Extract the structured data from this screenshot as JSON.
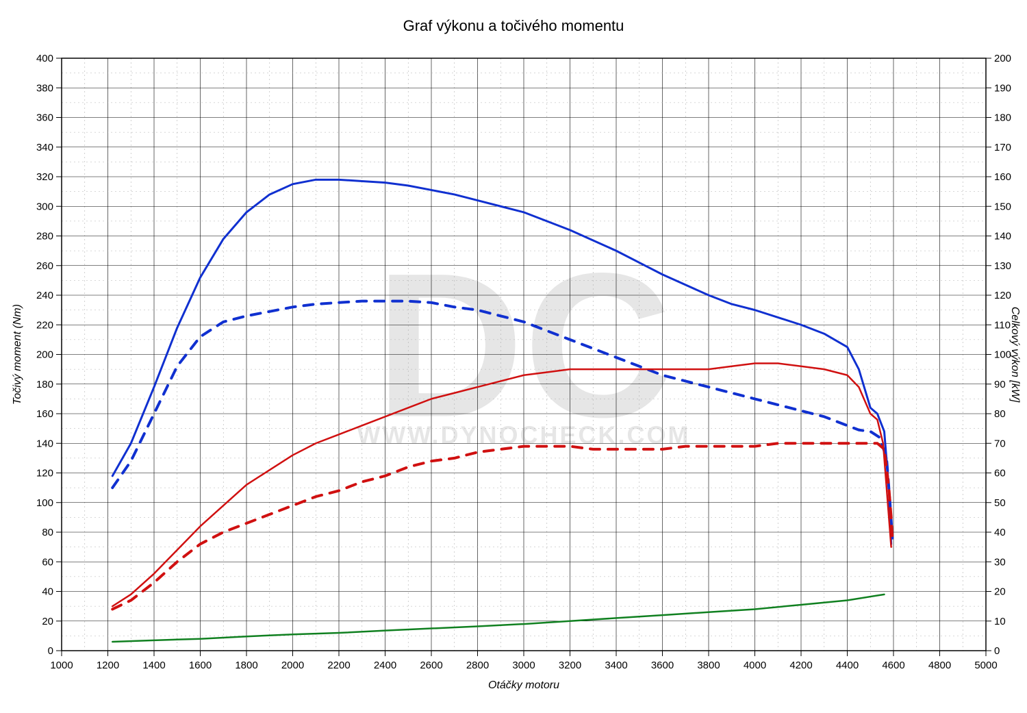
{
  "chart": {
    "title": "Graf výkonu a točivého momentu",
    "title_fontsize": 22,
    "background_color": "#ffffff",
    "grid_color_major": "#000000",
    "grid_color_minor": "#b0b0b0",
    "grid_major_stroke_width": 0.6,
    "grid_minor_dash": "2,4",
    "plot_border_color": "#000000",
    "plot_border_width": 1.5,
    "x_axis": {
      "label": "Otáčky motoru",
      "label_fontsize": 16,
      "label_fontstyle": "italic",
      "min": 1000,
      "max": 5000,
      "tick_step": 200,
      "minor_per_major": 2
    },
    "y_left": {
      "label": "Točivý moment (Nm)",
      "label_fontsize": 16,
      "label_fontstyle": "italic",
      "min": 0,
      "max": 400,
      "tick_step": 20,
      "minor_per_major": 2
    },
    "y_right": {
      "label": "Celkový výkon [kW]",
      "label_fontsize": 16,
      "label_fontstyle": "italic",
      "min": 0,
      "max": 200,
      "tick_step": 10,
      "minor_per_major": 2
    },
    "watermark": {
      "big_letters": "DC",
      "big_font_size": 300,
      "url": "WWW.DYNOCHECK.COM",
      "url_font_size": 36,
      "color": "#e6e6e6"
    },
    "series": [
      {
        "id": "torque_tuned",
        "axis": "left",
        "color": "#1030d0",
        "stroke_width": 3,
        "dash": null,
        "data": [
          [
            1220,
            118
          ],
          [
            1300,
            140
          ],
          [
            1400,
            178
          ],
          [
            1500,
            218
          ],
          [
            1600,
            252
          ],
          [
            1700,
            278
          ],
          [
            1800,
            296
          ],
          [
            1900,
            308
          ],
          [
            2000,
            315
          ],
          [
            2100,
            318
          ],
          [
            2200,
            318
          ],
          [
            2300,
            317
          ],
          [
            2400,
            316
          ],
          [
            2500,
            314
          ],
          [
            2600,
            311
          ],
          [
            2700,
            308
          ],
          [
            2800,
            304
          ],
          [
            2900,
            300
          ],
          [
            3000,
            296
          ],
          [
            3100,
            290
          ],
          [
            3200,
            284
          ],
          [
            3300,
            277
          ],
          [
            3400,
            270
          ],
          [
            3500,
            262
          ],
          [
            3600,
            254
          ],
          [
            3700,
            247
          ],
          [
            3800,
            240
          ],
          [
            3900,
            234
          ],
          [
            4000,
            230
          ],
          [
            4100,
            225
          ],
          [
            4200,
            220
          ],
          [
            4300,
            214
          ],
          [
            4400,
            205
          ],
          [
            4450,
            190
          ],
          [
            4500,
            164
          ],
          [
            4530,
            160
          ],
          [
            4560,
            148
          ],
          [
            4580,
            110
          ],
          [
            4590,
            72
          ]
        ]
      },
      {
        "id": "torque_stock",
        "axis": "left",
        "color": "#1030d0",
        "stroke_width": 4,
        "dash": "14,12",
        "data": [
          [
            1220,
            110
          ],
          [
            1300,
            128
          ],
          [
            1400,
            160
          ],
          [
            1500,
            192
          ],
          [
            1600,
            212
          ],
          [
            1700,
            222
          ],
          [
            1800,
            226
          ],
          [
            1900,
            229
          ],
          [
            2000,
            232
          ],
          [
            2100,
            234
          ],
          [
            2200,
            235
          ],
          [
            2300,
            236
          ],
          [
            2400,
            236
          ],
          [
            2500,
            236
          ],
          [
            2600,
            235
          ],
          [
            2700,
            232
          ],
          [
            2800,
            230
          ],
          [
            2900,
            226
          ],
          [
            3000,
            222
          ],
          [
            3100,
            216
          ],
          [
            3200,
            210
          ],
          [
            3300,
            204
          ],
          [
            3400,
            198
          ],
          [
            3500,
            192
          ],
          [
            3600,
            186
          ],
          [
            3700,
            182
          ],
          [
            3800,
            178
          ],
          [
            3900,
            174
          ],
          [
            4000,
            170
          ],
          [
            4100,
            166
          ],
          [
            4200,
            162
          ],
          [
            4300,
            158
          ],
          [
            4400,
            152
          ],
          [
            4450,
            149
          ],
          [
            4500,
            148
          ],
          [
            4540,
            144
          ],
          [
            4570,
            130
          ],
          [
            4585,
            100
          ],
          [
            4595,
            76
          ]
        ]
      },
      {
        "id": "power_tuned",
        "axis": "right",
        "color": "#d01010",
        "stroke_width": 2.5,
        "dash": null,
        "data": [
          [
            1220,
            15
          ],
          [
            1300,
            19
          ],
          [
            1400,
            26
          ],
          [
            1500,
            34
          ],
          [
            1600,
            42
          ],
          [
            1700,
            49
          ],
          [
            1800,
            56
          ],
          [
            1900,
            61
          ],
          [
            2000,
            66
          ],
          [
            2100,
            70
          ],
          [
            2200,
            73
          ],
          [
            2300,
            76
          ],
          [
            2400,
            79
          ],
          [
            2500,
            82
          ],
          [
            2600,
            85
          ],
          [
            2700,
            87
          ],
          [
            2800,
            89
          ],
          [
            2900,
            91
          ],
          [
            3000,
            93
          ],
          [
            3100,
            94
          ],
          [
            3200,
            95
          ],
          [
            3300,
            95
          ],
          [
            3400,
            95
          ],
          [
            3500,
            95
          ],
          [
            3600,
            95
          ],
          [
            3700,
            95
          ],
          [
            3800,
            95
          ],
          [
            3900,
            96
          ],
          [
            4000,
            97
          ],
          [
            4100,
            97
          ],
          [
            4200,
            96
          ],
          [
            4300,
            95
          ],
          [
            4400,
            93
          ],
          [
            4450,
            89
          ],
          [
            4500,
            80
          ],
          [
            4530,
            78
          ],
          [
            4555,
            70
          ],
          [
            4575,
            50
          ],
          [
            4590,
            35
          ]
        ]
      },
      {
        "id": "power_stock",
        "axis": "right",
        "color": "#d01010",
        "stroke_width": 4,
        "dash": "14,12",
        "data": [
          [
            1220,
            14
          ],
          [
            1300,
            17
          ],
          [
            1400,
            23
          ],
          [
            1500,
            30
          ],
          [
            1600,
            36
          ],
          [
            1700,
            40
          ],
          [
            1800,
            43
          ],
          [
            1900,
            46
          ],
          [
            2000,
            49
          ],
          [
            2100,
            52
          ],
          [
            2200,
            54
          ],
          [
            2300,
            57
          ],
          [
            2400,
            59
          ],
          [
            2500,
            62
          ],
          [
            2600,
            64
          ],
          [
            2700,
            65
          ],
          [
            2800,
            67
          ],
          [
            2900,
            68
          ],
          [
            3000,
            69
          ],
          [
            3100,
            69
          ],
          [
            3200,
            69
          ],
          [
            3300,
            68
          ],
          [
            3400,
            68
          ],
          [
            3500,
            68
          ],
          [
            3600,
            68
          ],
          [
            3700,
            69
          ],
          [
            3800,
            69
          ],
          [
            3900,
            69
          ],
          [
            4000,
            69
          ],
          [
            4100,
            70
          ],
          [
            4200,
            70
          ],
          [
            4300,
            70
          ],
          [
            4400,
            70
          ],
          [
            4470,
            70
          ],
          [
            4530,
            70
          ],
          [
            4560,
            68
          ],
          [
            4580,
            55
          ],
          [
            4590,
            45
          ],
          [
            4595,
            38
          ]
        ]
      },
      {
        "id": "losses",
        "axis": "right",
        "color": "#108020",
        "stroke_width": 2.5,
        "dash": null,
        "data": [
          [
            1220,
            3
          ],
          [
            1400,
            3.5
          ],
          [
            1600,
            4
          ],
          [
            1800,
            4.8
          ],
          [
            2000,
            5.5
          ],
          [
            2200,
            6
          ],
          [
            2400,
            6.8
          ],
          [
            2600,
            7.5
          ],
          [
            2800,
            8.2
          ],
          [
            3000,
            9
          ],
          [
            3200,
            10
          ],
          [
            3400,
            11
          ],
          [
            3600,
            12
          ],
          [
            3800,
            13
          ],
          [
            4000,
            14
          ],
          [
            4200,
            15.5
          ],
          [
            4400,
            17
          ],
          [
            4560,
            19
          ]
        ]
      }
    ]
  }
}
